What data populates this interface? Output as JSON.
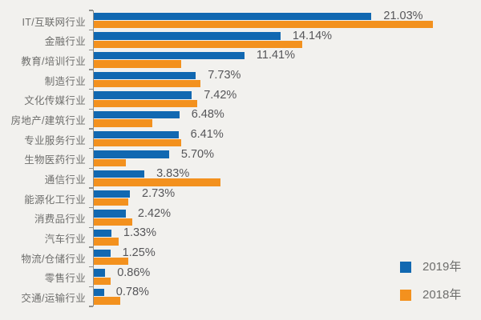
{
  "background_color": "#f2f1ee",
  "chart_data": {
    "type": "bar",
    "orientation": "horizontal",
    "title": "",
    "xlabel": "",
    "ylabel": "",
    "grid": false,
    "xlim": [
      0,
      26
    ],
    "legend_position": "bottom-right",
    "axis_color": "#8f8f8c",
    "category_label_color": "#6e6e6c",
    "value_label_color": "#565659",
    "value_labels_shown_for_series": "2019年",
    "categories": [
      "IT/互联网行业",
      "金融行业",
      "教育/培训行业",
      "制造行业",
      "文化传媒行业",
      "房地产/建筑行业",
      "专业服务行业",
      "生物医药行业",
      "通信行业",
      "能源化工行业",
      "消费品行业",
      "汽车行业",
      "物流/仓储行业",
      "零售行业",
      "交通/运输行业"
    ],
    "series": [
      {
        "name": "2019年",
        "color": "#1168b1",
        "values": [
          21.03,
          14.14,
          11.41,
          7.73,
          7.42,
          6.48,
          6.41,
          5.7,
          3.83,
          2.73,
          2.42,
          1.33,
          1.25,
          0.86,
          0.78
        ],
        "value_labels": [
          "21.03%",
          "14.14%",
          "11.41%",
          "7.73%",
          "7.42%",
          "6.48%",
          "6.41%",
          "5.70%",
          "3.83%",
          "2.73%",
          "2.42%",
          "1.33%",
          "1.25%",
          "0.86%",
          "0.78%"
        ]
      },
      {
        "name": "2018年",
        "color": "#f3911e",
        "estimated": true,
        "values": [
          25.7,
          15.8,
          6.6,
          8.1,
          7.8,
          4.4,
          6.6,
          2.4,
          9.6,
          2.6,
          2.9,
          1.9,
          2.6,
          1.3,
          2.0
        ]
      }
    ]
  }
}
